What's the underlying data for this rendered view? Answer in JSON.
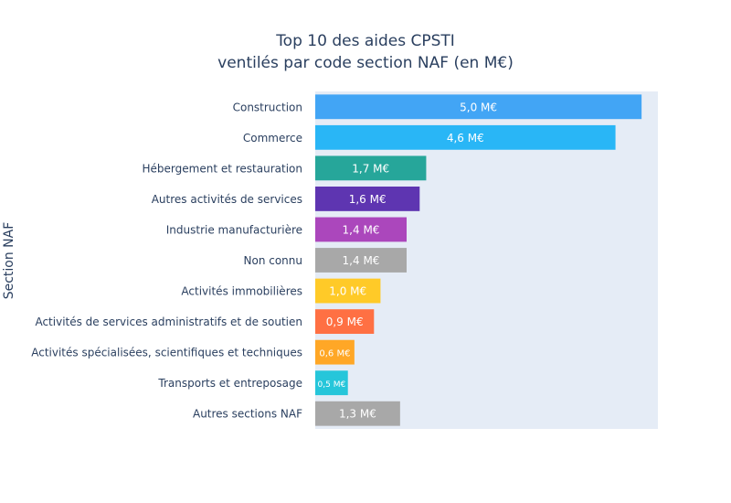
{
  "chart_data": {
    "type": "bar",
    "orientation": "horizontal",
    "title_lines": [
      "Top 10 des aides CPSTI",
      "ventilés par code section NAF (en M€)"
    ],
    "ylabel": "Section NAF",
    "xlabel": "",
    "grid": false,
    "categories": [
      "Construction",
      "Commerce",
      "Hébergement et restauration",
      "Autres activités de services",
      "Industrie manufacturière",
      "Non connu",
      "Activités immobilières",
      "Activités de services administratifs et de soutien",
      "Activités spécialisées, scientifiques et techniques",
      "Transports et entreposage",
      "Autres sections NAF"
    ],
    "values": [
      5.0,
      4.6,
      1.7,
      1.6,
      1.4,
      1.4,
      1.0,
      0.9,
      0.6,
      0.5,
      1.3
    ],
    "value_labels": [
      "5,0 M€",
      "4,6 M€",
      "1,7 M€",
      "1,6 M€",
      "1,4 M€",
      "1,4 M€",
      "1,0 M€",
      "0,9 M€",
      "0,6 M€",
      "0,5 M€",
      "1,3 M€"
    ],
    "colors": [
      "#42a5f5",
      "#29b6f6",
      "#26a69a",
      "#5e35b1",
      "#ab47bc",
      "#a8a8a8",
      "#ffca28",
      "#ff7043",
      "#ffa726",
      "#26c6da",
      "#a8a8a8"
    ],
    "xlim": [
      0,
      5.25
    ],
    "plot_background": "#e5ecf6"
  }
}
